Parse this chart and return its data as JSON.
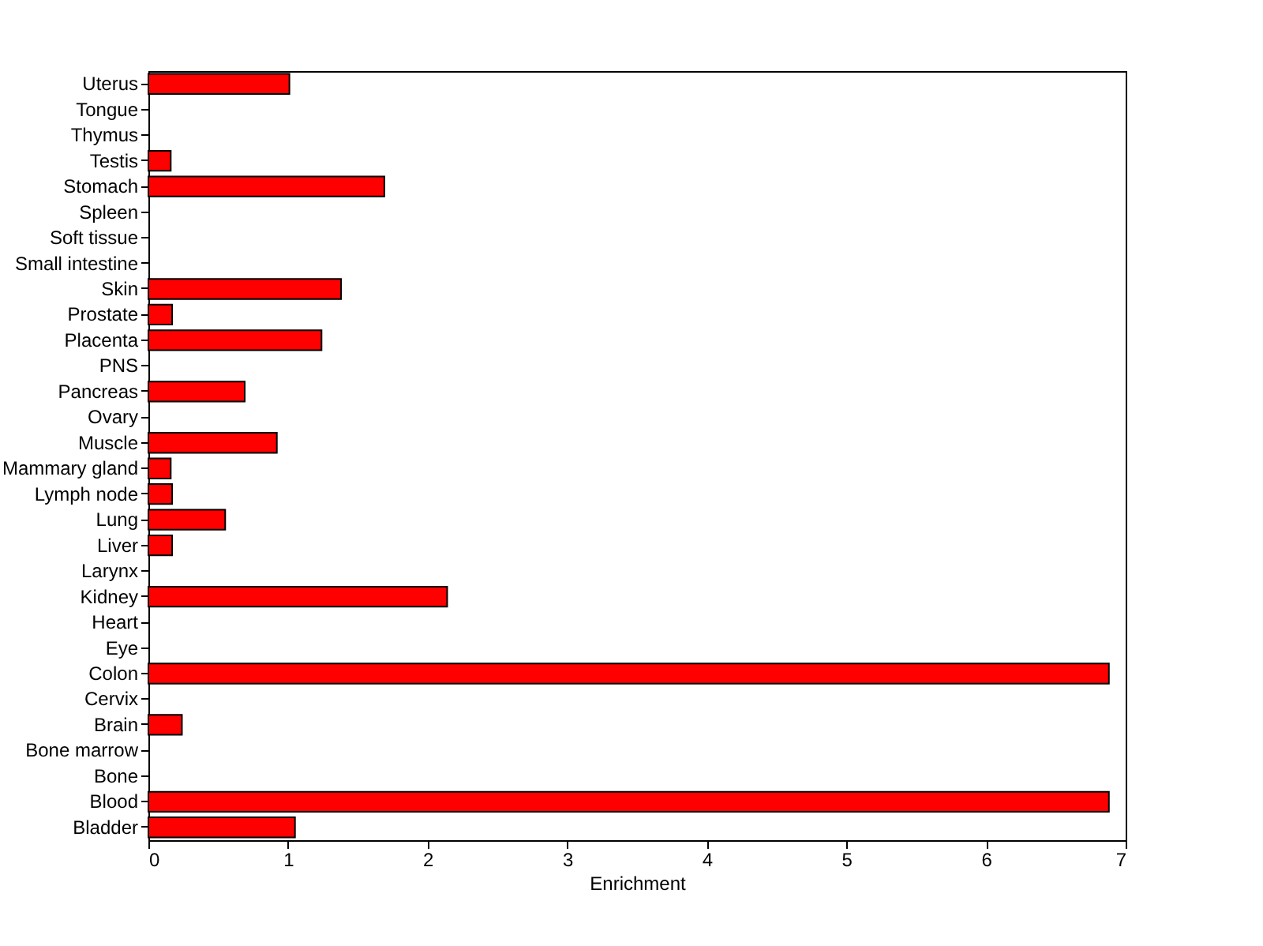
{
  "chart_data": {
    "type": "bar",
    "orientation": "horizontal",
    "xlabel": "Enrichment",
    "categories": [
      "Uterus",
      "Tongue",
      "Thymus",
      "Testis",
      "Stomach",
      "Spleen",
      "Soft tissue",
      "Small intestine",
      "Skin",
      "Prostate",
      "Placenta",
      "PNS",
      "Pancreas",
      "Ovary",
      "Muscle",
      "Mammary gland",
      "Lymph node",
      "Lung",
      "Liver",
      "Larynx",
      "Kidney",
      "Heart",
      "Eye",
      "Colon",
      "Cervix",
      "Brain",
      "Bone marrow",
      "Bone",
      "Blood",
      "Bladder"
    ],
    "values": [
      1.01,
      0,
      0,
      0.16,
      1.69,
      0,
      0,
      0,
      1.38,
      0.17,
      1.24,
      0,
      0.69,
      0,
      0.92,
      0.16,
      0.17,
      0.55,
      0.17,
      0,
      2.14,
      0,
      0,
      6.88,
      0,
      0.24,
      0,
      0,
      6.88,
      1.05
    ],
    "color": "#ff0000",
    "xlim": [
      0,
      7
    ],
    "xticks": [
      0,
      1,
      2,
      3,
      4,
      5,
      6,
      7
    ],
    "grid": false
  }
}
